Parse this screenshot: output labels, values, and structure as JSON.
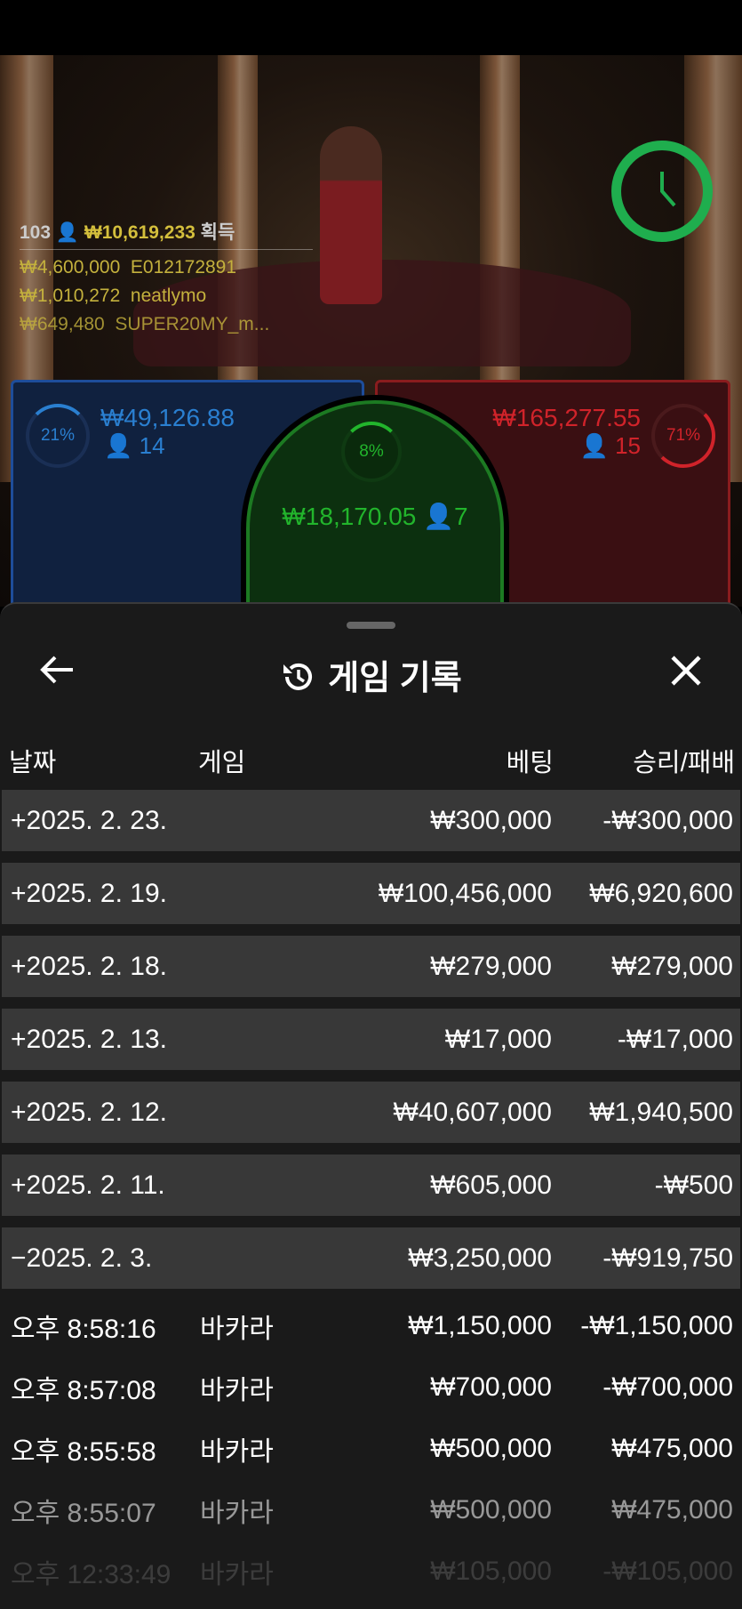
{
  "video": {
    "winners_header": {
      "count": "103",
      "amount": "₩10,619,233",
      "suffix": "획득"
    },
    "winners": [
      {
        "amount": "₩4,600,000",
        "name": "E012172891"
      },
      {
        "amount": "₩1,010,272",
        "name": "neatlymo"
      },
      {
        "amount": "₩649,480",
        "name": "SUPER20MY_m..."
      }
    ],
    "timer_icon": "clock-icon",
    "timer_color": "#1fae4e"
  },
  "bets": {
    "player": {
      "percent": "21%",
      "amount": "₩49,126.88",
      "players": "14",
      "color": "#2a7fd0"
    },
    "tie": {
      "percent": "8%",
      "amount": "₩18,170.05",
      "players": "7",
      "color": "#22b52c"
    },
    "banker": {
      "percent": "71%",
      "amount": "₩165,277.55",
      "players": "15",
      "color": "#d0232a"
    }
  },
  "sheet": {
    "title": "게임 기록",
    "title_icon": "history-icon",
    "back_icon": "arrow-left-icon",
    "close_icon": "close-icon",
    "columns": [
      "날짜",
      "게임",
      "베팅",
      "승리/패배"
    ],
    "day_rows": [
      {
        "date": "+2025. 2. 23.",
        "bet": "₩300,000",
        "result": "-₩300,000"
      },
      {
        "date": "+2025. 2. 19.",
        "bet": "₩100,456,000",
        "result": "₩6,920,600"
      },
      {
        "date": "+2025. 2. 18.",
        "bet": "₩279,000",
        "result": "₩279,000"
      },
      {
        "date": "+2025. 2. 13.",
        "bet": "₩17,000",
        "result": "-₩17,000"
      },
      {
        "date": "+2025. 2. 12.",
        "bet": "₩40,607,000",
        "result": "₩1,940,500"
      },
      {
        "date": "+2025. 2. 11.",
        "bet": "₩605,000",
        "result": "-₩500"
      },
      {
        "date": "−2025. 2. 3.",
        "bet": "₩3,250,000",
        "result": "-₩919,750"
      }
    ],
    "detail_rows": [
      {
        "time": "오후 8:58:16",
        "game": "바카라",
        "bet": "₩1,150,000",
        "result": "-₩1,150,000"
      },
      {
        "time": "오후 8:57:08",
        "game": "바카라",
        "bet": "₩700,000",
        "result": "-₩700,000"
      },
      {
        "time": "오후 8:55:58",
        "game": "바카라",
        "bet": "₩500,000",
        "result": "₩475,000"
      },
      {
        "time": "오후 8:55:07",
        "game": "바카라",
        "bet": "₩500,000",
        "result": "₩475,000"
      },
      {
        "time": "오후 12:33:49",
        "game": "바카라",
        "bet": "₩105,000",
        "result": "-₩105,000"
      }
    ]
  }
}
